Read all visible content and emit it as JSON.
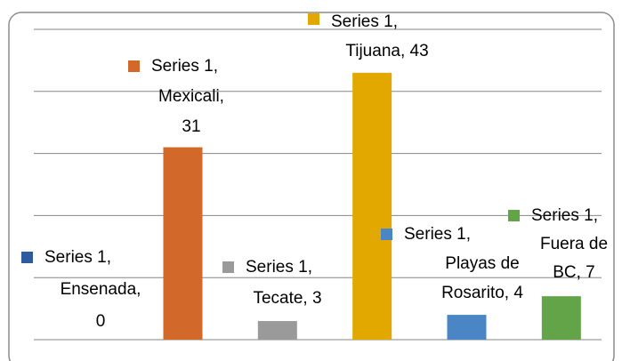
{
  "chart_data": {
    "type": "bar",
    "series": [
      {
        "name": "Series 1",
        "values": [
          0,
          31,
          3,
          43,
          4,
          7
        ]
      }
    ],
    "categories": [
      "Ensenada",
      "Mexicali",
      "Tecate",
      "Tijuana",
      "Playas de Rosarito",
      "Fuera de BC"
    ],
    "colors": [
      "#2e5b9e",
      "#d2692a",
      "#9a9a9a",
      "#e2a800",
      "#4a86c5",
      "#62a447"
    ],
    "value_labels": [
      [
        "Series 1,",
        "Ensenada,",
        "0"
      ],
      [
        "Series 1,",
        "Mexicali,",
        "31"
      ],
      [
        "Series 1,",
        "Tecate, 3"
      ],
      [
        "Series 1,",
        "Tijuana, 43"
      ],
      [
        "Series 1,",
        "Playas de",
        "Rosarito, 4"
      ],
      [
        "Series 1,",
        "Fuera de",
        "BC, 7"
      ]
    ],
    "ylim": [
      0,
      50
    ],
    "yticks": [
      0,
      10,
      20,
      30,
      40,
      50
    ],
    "grid": true
  }
}
